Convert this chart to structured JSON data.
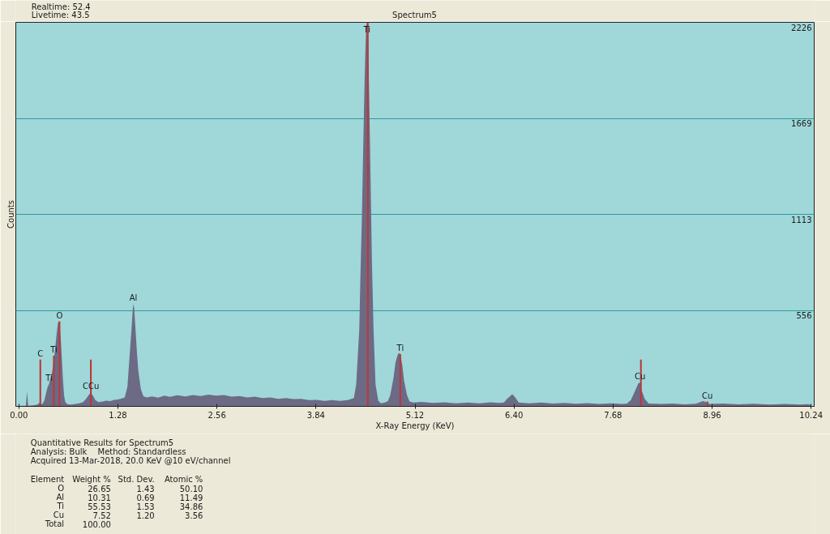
{
  "chart_data": {
    "type": "area",
    "title": "Spectrum5",
    "subtitle": "Realtime: 52.4\nLivetime: 43.5",
    "xlabel": "X-Ray Energy (KeV)",
    "ylabel": "Counts",
    "xlim": [
      -0.04,
      10.28
    ],
    "ylim": [
      0,
      2226
    ],
    "xticks": [
      {
        "value": 0,
        "label": "0.00"
      },
      1.28,
      2.56,
      3.84,
      5.12,
      {
        "value": 6.4,
        "label": "6.40"
      },
      7.68,
      8.96,
      10.24
    ],
    "yticks": [
      556,
      1113,
      1669,
      2226
    ],
    "grid": "y",
    "series": [
      {
        "color": "#6c6a85",
        "x": [
          0.0,
          0.05,
          0.09,
          0.105,
          0.12,
          0.18,
          0.24,
          0.27,
          0.29,
          0.31,
          0.33,
          0.35,
          0.37,
          0.39,
          0.41,
          0.43,
          0.45,
          0.47,
          0.49,
          0.505,
          0.515,
          0.525,
          0.54,
          0.555,
          0.57,
          0.585,
          0.6,
          0.63,
          0.68,
          0.73,
          0.78,
          0.83,
          0.87,
          0.9,
          0.93,
          0.96,
          0.99,
          1.03,
          1.08,
          1.13,
          1.18,
          1.23,
          1.28,
          1.33,
          1.368,
          1.403,
          1.43,
          1.455,
          1.473,
          1.48,
          1.49,
          1.508,
          1.525,
          1.543,
          1.577,
          1.61,
          1.65,
          1.72,
          1.8,
          1.88,
          1.95,
          2.05,
          2.15,
          2.25,
          2.35,
          2.45,
          2.55,
          2.65,
          2.75,
          2.85,
          2.95,
          3.05,
          3.15,
          3.25,
          3.35,
          3.45,
          3.55,
          3.65,
          3.75,
          3.85,
          3.95,
          4.05,
          4.15,
          4.25,
          4.33,
          4.36,
          4.4,
          4.415,
          4.433,
          4.45,
          4.468,
          4.482,
          4.49,
          4.5,
          4.514,
          4.528,
          4.546,
          4.563,
          4.584,
          4.61,
          4.645,
          4.68,
          4.73,
          4.77,
          4.8,
          4.84,
          4.868,
          4.893,
          4.91,
          4.93,
          4.956,
          4.98,
          5.017,
          5.05,
          5.1,
          5.2,
          5.35,
          5.5,
          5.65,
          5.8,
          5.95,
          6.1,
          6.2,
          6.27,
          6.31,
          6.34,
          6.377,
          6.41,
          6.46,
          6.6,
          6.75,
          6.9,
          7.05,
          7.2,
          7.35,
          7.5,
          7.65,
          7.8,
          7.86,
          7.91,
          7.95,
          7.98,
          8.006,
          8.03,
          8.05,
          8.09,
          8.14,
          8.3,
          8.45,
          8.6,
          8.75,
          8.84,
          8.88,
          8.93,
          9.1,
          9.3,
          9.5,
          9.7,
          9.9,
          10.1,
          10.2,
          10.24
        ],
        "values": [
          2,
          3,
          4,
          86,
          4,
          6,
          10,
          22,
          12,
          18,
          35,
          75,
          110,
          130,
          165,
          200,
          260,
          340,
          430,
          485,
          493,
          470,
          400,
          280,
          150,
          60,
          25,
          12,
          10,
          14,
          18,
          25,
          45,
          65,
          80,
          60,
          35,
          25,
          28,
          33,
          30,
          38,
          40,
          46,
          52,
          114,
          286,
          443,
          568,
          592,
          568,
          443,
          318,
          208,
          99,
          59,
          52,
          58,
          50,
          62,
          55,
          64,
          58,
          66,
          60,
          68,
          62,
          66,
          56,
          60,
          52,
          56,
          48,
          52,
          44,
          48,
          42,
          44,
          36,
          38,
          32,
          36,
          32,
          36,
          48,
          128,
          446,
          765,
          1081,
          1479,
          1876,
          2114,
          2210,
          2226,
          2114,
          1797,
          1320,
          843,
          446,
          128,
          33,
          18,
          22,
          30,
          64,
          160,
          255,
          295,
          310,
          303,
          239,
          145,
          64,
          28,
          22,
          26,
          20,
          24,
          18,
          22,
          18,
          24,
          20,
          22,
          44,
          55,
          70,
          55,
          22,
          18,
          22,
          16,
          20,
          15,
          19,
          14,
          18,
          14,
          16,
          36,
          75,
          106,
          133,
          138,
          91,
          44,
          17,
          14,
          17,
          12,
          15,
          30,
          26,
          14,
          16,
          12,
          15,
          11,
          14,
          10,
          13,
          8
        ]
      },
      {
        "type": "bar",
        "color": "#b83a3a",
        "x": [
          0.277,
          0.452,
          0.525,
          0.93,
          4.51,
          4.93,
          8.04,
          8.9
        ],
        "values": [
          271,
          293,
          493,
          271,
          2226,
          303,
          271,
          28
        ]
      }
    ],
    "annotations": [
      {
        "text": "C",
        "x": 0.277,
        "y": 271
      },
      {
        "text": "Ti",
        "x": 0.452,
        "y": 293
      },
      {
        "text": "Ti",
        "x": 0.39,
        "y": 130
      },
      {
        "text": "O",
        "x": 0.525,
        "y": 493
      },
      {
        "text": "CCu",
        "x": 0.93,
        "y": 80
      },
      {
        "text": "Al",
        "x": 1.48,
        "y": 592
      },
      {
        "text": "Ti",
        "x": 4.5,
        "y": 2226
      },
      {
        "text": "Ti",
        "x": 4.93,
        "y": 303
      },
      {
        "text": "Cu",
        "x": 8.03,
        "y": 138
      },
      {
        "text": "Cu",
        "x": 8.9,
        "y": 28
      },
      "Quantitative Results for Spectrum5",
      "Analysis: Bulk\tMethod: Standardless",
      "Acquired 13-Mar-2018, 20.0 KeV @10 eV/channel",
      "Element\tWeight %\tStd. Dev.\tAtomic %",
      "O\t26.65\t1.43\t50.10",
      "Al\t10.31\t0.69\t11.49",
      "Ti\t55.53\t1.53\t34.86",
      "Cu\t7.52\t1.20\t3.56",
      "Total\t100.00"
    ]
  }
}
